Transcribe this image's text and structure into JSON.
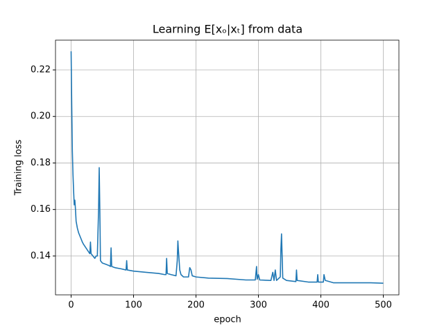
{
  "chart_data": {
    "type": "line",
    "title": "Learning E[xₒ|xₜ] from data",
    "xlabel": "epoch",
    "ylabel": "Training loss",
    "x": [
      0,
      1,
      2,
      3,
      4,
      5,
      6,
      7,
      8,
      10,
      12,
      15,
      18,
      20,
      25,
      30,
      31,
      32,
      35,
      38,
      40,
      42,
      44,
      45,
      46,
      47,
      50,
      55,
      60,
      63,
      64,
      65,
      70,
      80,
      88,
      89,
      90,
      100,
      120,
      140,
      150,
      152,
      153,
      154,
      160,
      168,
      170,
      171,
      172,
      174,
      176,
      180,
      188,
      190,
      192,
      194,
      200,
      220,
      250,
      280,
      295,
      297,
      298,
      300,
      302,
      320,
      323,
      325,
      327,
      329,
      335,
      336,
      337,
      338,
      339,
      345,
      360,
      361,
      362,
      380,
      394,
      395,
      396,
      404,
      405,
      407,
      420,
      450,
      480,
      500
    ],
    "series": [
      {
        "name": "Training loss",
        "color": "#1f77b4",
        "values": [
          0.228,
          0.205,
          0.185,
          0.175,
          0.168,
          0.162,
          0.164,
          0.16,
          0.155,
          0.152,
          0.15,
          0.148,
          0.146,
          0.145,
          0.143,
          0.141,
          0.146,
          0.141,
          0.14,
          0.139,
          0.14,
          0.14,
          0.16,
          0.178,
          0.16,
          0.138,
          0.137,
          0.1365,
          0.136,
          0.1355,
          0.1435,
          0.1355,
          0.135,
          0.1345,
          0.134,
          0.138,
          0.134,
          0.1335,
          0.133,
          0.1325,
          0.132,
          0.132,
          0.139,
          0.1325,
          0.132,
          0.1315,
          0.138,
          0.1465,
          0.142,
          0.134,
          0.132,
          0.131,
          0.131,
          0.135,
          0.134,
          0.1315,
          0.131,
          0.1305,
          0.1303,
          0.1297,
          0.1297,
          0.1355,
          0.13,
          0.132,
          0.1297,
          0.1295,
          0.133,
          0.1295,
          0.134,
          0.1295,
          0.131,
          0.143,
          0.1495,
          0.14,
          0.1305,
          0.1295,
          0.129,
          0.134,
          0.1295,
          0.1288,
          0.1288,
          0.132,
          0.1288,
          0.1288,
          0.132,
          0.1295,
          0.1285,
          0.1285,
          0.1285,
          0.1283
        ]
      }
    ],
    "xlim": [
      -25,
      525
    ],
    "xticks": [
      0,
      100,
      200,
      300,
      400,
      500
    ],
    "ylim": [
      0.1233,
      0.2328
    ],
    "yticks": [
      0.14,
      0.16,
      0.18,
      {
        "value": 0.2,
        "label": "0.20"
      },
      0.22
    ],
    "grid": true
  }
}
